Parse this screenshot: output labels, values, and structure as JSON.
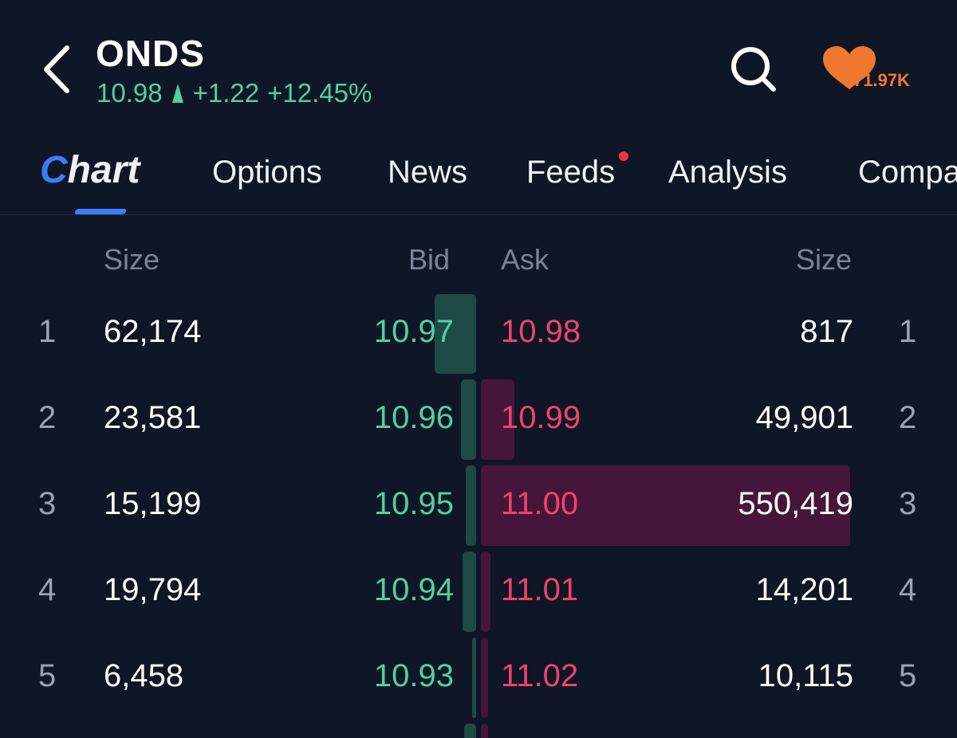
{
  "header": {
    "ticker": "ONDS",
    "price": "10.98",
    "change": "+1.22",
    "change_pct": "+12.45%",
    "followers": "71.97K",
    "colors": {
      "up": "#4fd1a3",
      "down": "#f0436b",
      "accent": "#3b7cff",
      "heart": "#f0772f"
    }
  },
  "tabs": [
    {
      "label_first": "C",
      "label_rest": "hart",
      "active": true
    },
    {
      "label": "Options"
    },
    {
      "label": "News"
    },
    {
      "label": "Feeds",
      "has_dot": true
    },
    {
      "label": "Analysis"
    },
    {
      "label": "Compa"
    }
  ],
  "book": {
    "headers": {
      "bid_size": "Size",
      "bid": "Bid",
      "ask": "Ask",
      "ask_size": "Size"
    },
    "rows": [
      {
        "level": "1",
        "bid_size": "62,174",
        "bid": "10.97",
        "ask": "10.98",
        "ask_size": "817",
        "ask_level": "1"
      },
      {
        "level": "2",
        "bid_size": "23,581",
        "bid": "10.96",
        "ask": "10.99",
        "ask_size": "49,901",
        "ask_level": "2"
      },
      {
        "level": "3",
        "bid_size": "15,199",
        "bid": "10.95",
        "ask": "11.00",
        "ask_size": "550,419",
        "ask_level": "3"
      },
      {
        "level": "4",
        "bid_size": "19,794",
        "bid": "10.94",
        "ask": "11.01",
        "ask_size": "14,201",
        "ask_level": "4"
      },
      {
        "level": "5",
        "bid_size": "6,458",
        "bid": "10.93",
        "ask": "11.02",
        "ask_size": "10,115",
        "ask_level": "5"
      }
    ]
  }
}
